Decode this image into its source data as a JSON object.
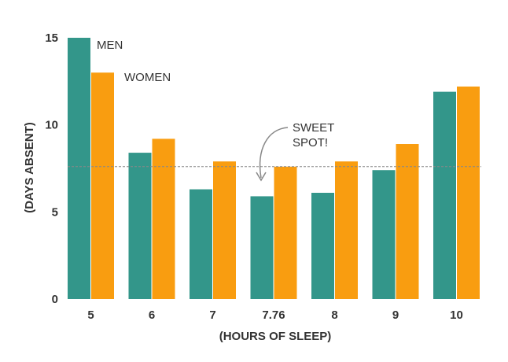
{
  "chart_data": {
    "type": "bar",
    "title": "",
    "xlabel": "(HOURS OF SLEEP)",
    "ylabel": "(DAYS ABSENT)",
    "ylim": [
      0,
      15
    ],
    "yticks": [
      "0",
      "5",
      "10",
      "15"
    ],
    "categories": [
      "5",
      "6",
      "7",
      "7.76",
      "8",
      "9",
      "10"
    ],
    "series": [
      {
        "name": "MEN",
        "color": "#33968a",
        "values": [
          15.0,
          8.4,
          6.3,
          5.9,
          6.1,
          7.4,
          11.9
        ]
      },
      {
        "name": "WOMEN",
        "color": "#f99d10",
        "values": [
          13.0,
          9.2,
          7.9,
          7.6,
          7.9,
          8.9,
          12.2
        ]
      }
    ],
    "reference_line": {
      "value": 7.6,
      "style": "dashed",
      "color": "#888888"
    },
    "annotation": {
      "lines": [
        "SWEET",
        "SPOT!"
      ],
      "target_category": "7.76"
    },
    "grid": false,
    "legend": "inline labels next to first bars"
  }
}
